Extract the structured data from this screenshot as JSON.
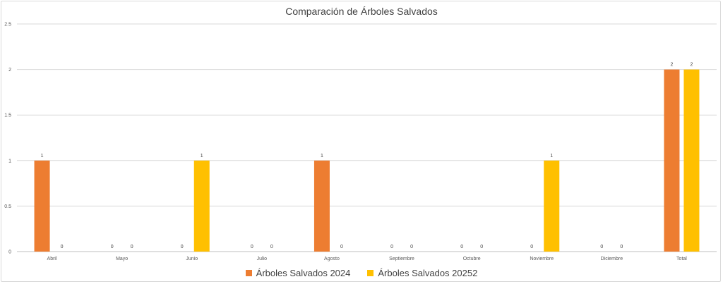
{
  "chart_data": {
    "type": "bar",
    "title": "Comparación de Árboles Salvados",
    "categories": [
      "Abril",
      "Mayo",
      "Junio",
      "Julio",
      "Agosto",
      "Septiembre",
      "Octubre",
      "Noviembre",
      "Diciembre",
      "Total"
    ],
    "series": [
      {
        "name": "Árboles Salvados 2024",
        "color": "#ED7D31",
        "values": [
          1,
          0,
          0,
          0,
          1,
          0,
          0,
          0,
          0,
          2
        ]
      },
      {
        "name": "Árboles Salvados 20252",
        "color": "#FFC000",
        "values": [
          0,
          0,
          1,
          0,
          0,
          0,
          0,
          1,
          0,
          2
        ]
      }
    ],
    "ylim": [
      0,
      2.5
    ],
    "yticks": [
      "0",
      "0.5",
      "1",
      "1.5",
      "2",
      "2.5"
    ],
    "grid": true,
    "legend_position": "bottom",
    "data_labels": true
  }
}
